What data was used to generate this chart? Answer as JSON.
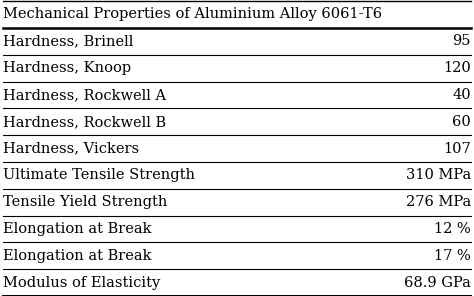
{
  "title": "Mechanical Properties of Aluminium Alloy 6061-T6",
  "rows": [
    [
      "Hardness, Brinell",
      "95"
    ],
    [
      "Hardness, Knoop",
      "120"
    ],
    [
      "Hardness, Rockwell A",
      "40"
    ],
    [
      "Hardness, Rockwell B",
      "60"
    ],
    [
      "Hardness, Vickers",
      "107"
    ],
    [
      "Ultimate Tensile Strength",
      "310 MPa"
    ],
    [
      "Tensile Yield Strength",
      "276 MPa"
    ],
    [
      "Elongation at Break",
      "12 %"
    ],
    [
      "Elongation at Break",
      "17 %"
    ],
    [
      "Modulus of Elasticity",
      "68.9 GPa"
    ]
  ],
  "bg_color": "#ffffff",
  "text_color": "#000000",
  "title_fontsize": 10.5,
  "cell_fontsize": 10.5,
  "figwidth": 4.74,
  "figheight": 2.96,
  "dpi": 100
}
